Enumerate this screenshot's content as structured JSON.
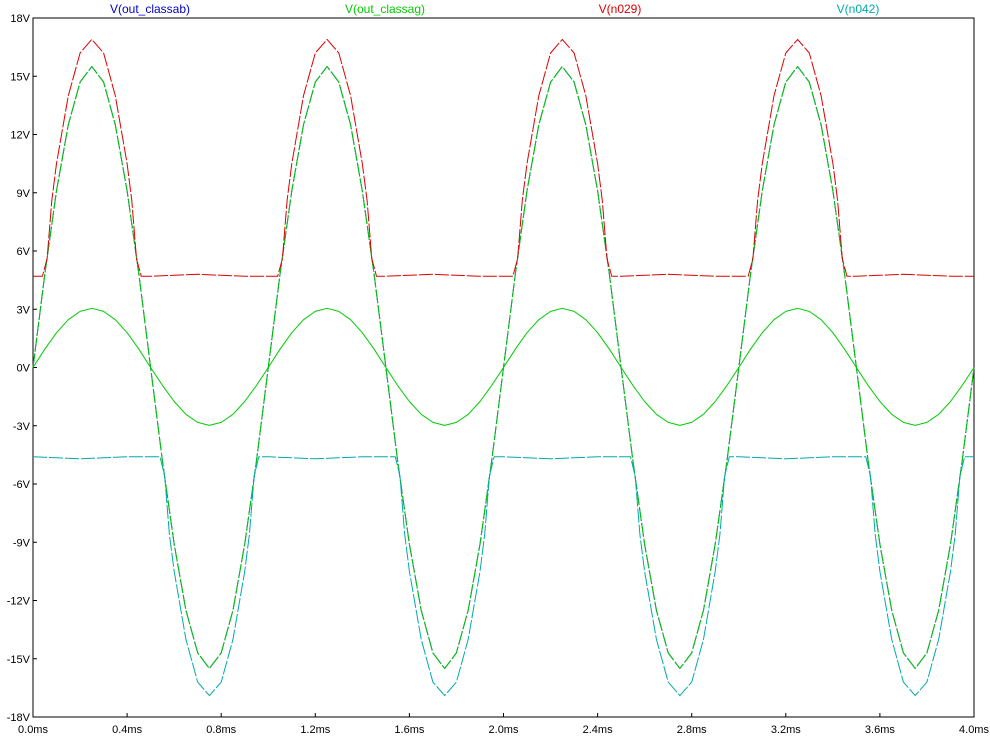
{
  "chart_data": {
    "type": "line",
    "xlim": [
      0.0,
      4.0
    ],
    "ylim": [
      -18,
      18
    ],
    "x_ticks": [
      0.0,
      0.4,
      0.8,
      1.2,
      1.6,
      2.0,
      2.4,
      2.8,
      3.2,
      3.6,
      4.0
    ],
    "x_tick_labels": [
      "0.0ms",
      "0.4ms",
      "0.8ms",
      "1.2ms",
      "1.6ms",
      "2.0ms",
      "2.4ms",
      "2.8ms",
      "3.2ms",
      "3.6ms",
      "4.0ms"
    ],
    "y_ticks": [
      18,
      15,
      12,
      9,
      6,
      3,
      0,
      -3,
      -6,
      -9,
      -12,
      -15,
      -18
    ],
    "y_tick_labels": [
      "18V",
      "15V",
      "12V",
      "9V",
      "6V",
      "3V",
      "0V",
      "-3V",
      "-6V",
      "-9V",
      "-12V",
      "-15V",
      "-18V"
    ],
    "grid": false,
    "legend_position": "top",
    "frequency_khz": 1,
    "series": [
      {
        "name": "V(out_classab)",
        "color": "#0000cc",
        "style": "dashed",
        "x": [
          0.0,
          0.05,
          0.1,
          0.15,
          0.2,
          0.25,
          0.3,
          0.35,
          0.4,
          0.45,
          0.5,
          0.55,
          0.6,
          0.65,
          0.7,
          0.75,
          0.8,
          0.85,
          0.9,
          0.95,
          1.0
        ],
        "y": [
          0.0,
          4.8,
          9.1,
          12.5,
          14.7,
          15.5,
          14.7,
          12.5,
          9.1,
          4.8,
          0.0,
          -4.8,
          -9.1,
          -12.5,
          -14.7,
          -15.5,
          -14.7,
          -12.5,
          -9.1,
          -4.8,
          0.0
        ],
        "periodic": true
      },
      {
        "name": "V(out_classag)",
        "color": "#00cc00",
        "style": "dashed",
        "x": [
          0.0,
          0.05,
          0.1,
          0.15,
          0.2,
          0.25,
          0.3,
          0.35,
          0.4,
          0.45,
          0.5,
          0.55,
          0.6,
          0.65,
          0.7,
          0.75,
          0.8,
          0.85,
          0.9,
          0.95,
          1.0
        ],
        "y": [
          0.0,
          4.8,
          9.1,
          12.5,
          14.7,
          15.5,
          14.7,
          12.5,
          9.1,
          4.8,
          0.0,
          -4.8,
          -9.1,
          -12.5,
          -14.7,
          -15.5,
          -14.7,
          -12.5,
          -9.1,
          -4.8,
          0.0
        ],
        "periodic": true
      },
      {
        "name": "V(out_classag)",
        "color": "#00cc00",
        "style": "solid",
        "x": [
          0.0,
          0.05,
          0.1,
          0.15,
          0.2,
          0.25,
          0.3,
          0.35,
          0.4,
          0.45,
          0.5,
          0.55,
          0.6,
          0.65,
          0.7,
          0.75,
          0.8,
          0.85,
          0.9,
          0.95,
          1.0
        ],
        "y": [
          0.0,
          0.94,
          1.79,
          2.46,
          2.89,
          3.05,
          2.89,
          2.46,
          1.79,
          0.94,
          0.0,
          -0.92,
          -1.75,
          -2.41,
          -2.83,
          -2.98,
          -2.83,
          -2.41,
          -1.75,
          -0.92,
          0.0
        ],
        "periodic": true
      },
      {
        "name": "V(n029)",
        "color": "#dd0000",
        "style": "dashed",
        "x": [
          0.0,
          0.04,
          0.06,
          0.08,
          0.1,
          0.15,
          0.2,
          0.25,
          0.3,
          0.35,
          0.4,
          0.42,
          0.44,
          0.46,
          0.5,
          0.6,
          0.7,
          0.8,
          0.9,
          1.0
        ],
        "y": [
          4.7,
          4.7,
          5.6,
          8.6,
          10.5,
          14.0,
          16.2,
          16.9,
          16.2,
          14.0,
          10.5,
          8.6,
          5.6,
          4.7,
          4.7,
          4.75,
          4.8,
          4.75,
          4.7,
          4.7
        ],
        "periodic": true
      },
      {
        "name": "V(n042)",
        "color": "#00aaaa",
        "style": "dashed",
        "x": [
          0.0,
          0.1,
          0.2,
          0.3,
          0.4,
          0.5,
          0.54,
          0.56,
          0.58,
          0.6,
          0.65,
          0.7,
          0.75,
          0.8,
          0.85,
          0.9,
          0.92,
          0.94,
          0.96,
          1.0
        ],
        "y": [
          -4.6,
          -4.65,
          -4.7,
          -4.65,
          -4.6,
          -4.6,
          -4.6,
          -5.6,
          -8.6,
          -10.5,
          -14.0,
          -16.2,
          -16.9,
          -16.2,
          -14.0,
          -10.5,
          -8.6,
          -5.6,
          -4.6,
          -4.6
        ],
        "periodic": true
      }
    ],
    "legend_labels": [
      {
        "text": "V(out_classab)",
        "color": "#0000cc"
      },
      {
        "text": "V(out_classag)",
        "color": "#00cc00"
      },
      {
        "text": "V(n029)",
        "color": "#dd0000"
      },
      {
        "text": "V(n042)",
        "color": "#00aaaa"
      }
    ]
  }
}
